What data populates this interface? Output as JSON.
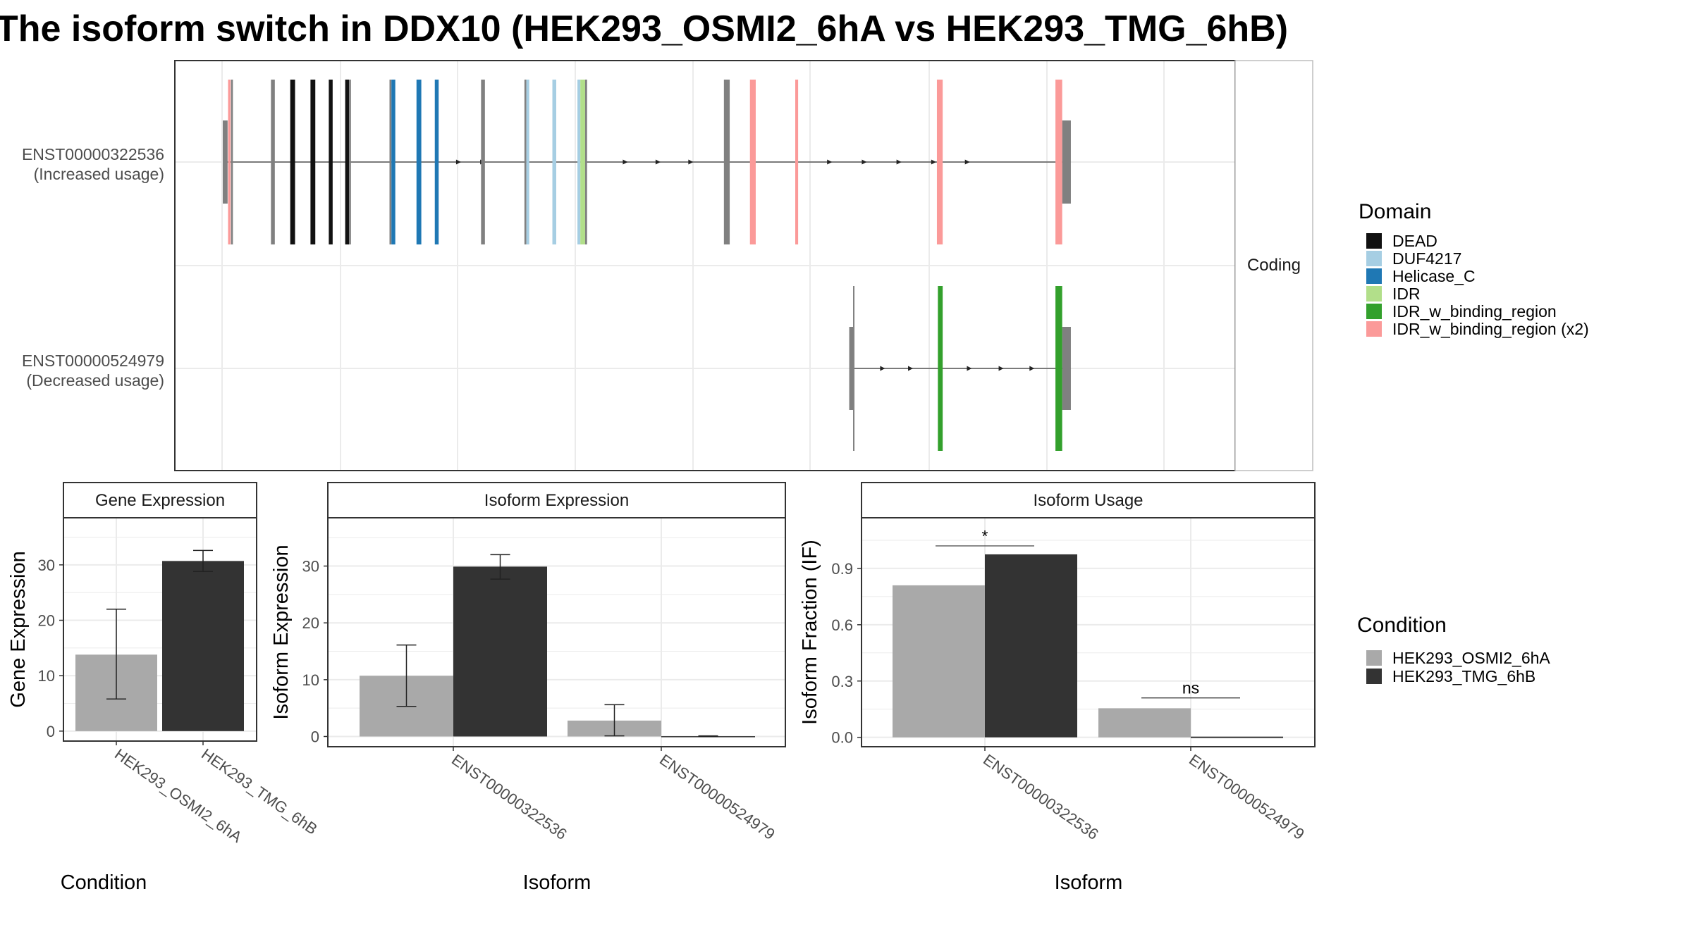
{
  "title": "The isoform switch in DDX10 (HEK293_OSMI2_6hA vs HEK293_TMG_6hB)",
  "colors": {
    "cond1": "#a9a9a9",
    "cond2": "#333333",
    "grid": "#ebebeb",
    "panel_border": "#333333",
    "strip_fill": "#ffffff",
    "exon_grey": "#808080",
    "intron": "#555555"
  },
  "structure": {
    "strip_label": "Coding",
    "x_range": [
      0,
      1000
    ],
    "transcripts": [
      {
        "id": "ENST00000322536",
        "usage": "(Increased usage)",
        "intron_span": [
          0,
          880
        ],
        "utr5": [
          0,
          5
        ],
        "utr3": [
          871,
          880
        ],
        "exons": [
          {
            "x": 5.5,
            "w": 2.5,
            "domain": "IDR_w_binding_region (x2)"
          },
          {
            "x": 8.5,
            "w": 2,
            "domain": "none"
          },
          {
            "x": 50,
            "w": 4,
            "domain": "none"
          },
          {
            "x": 70,
            "w": 5,
            "domain": "DEAD"
          },
          {
            "x": 91,
            "w": 5,
            "domain": "DEAD"
          },
          {
            "x": 110,
            "w": 4,
            "domain": "DEAD"
          },
          {
            "x": 127,
            "w": 4,
            "domain": "DEAD"
          },
          {
            "x": 131,
            "w": 2,
            "domain": "none"
          },
          {
            "x": 173,
            "w": 2,
            "domain": "none"
          },
          {
            "x": 175,
            "w": 4,
            "domain": "Helicase_C"
          },
          {
            "x": 201,
            "w": 5,
            "domain": "Helicase_C"
          },
          {
            "x": 220,
            "w": 4,
            "domain": "Helicase_C"
          },
          {
            "x": 268,
            "w": 4,
            "domain": "none"
          },
          {
            "x": 313,
            "w": 2,
            "domain": "none"
          },
          {
            "x": 315,
            "w": 3,
            "domain": "DUF4217"
          },
          {
            "x": 342,
            "w": 4,
            "domain": "DUF4217"
          },
          {
            "x": 368,
            "w": 3,
            "domain": "DUF4217"
          },
          {
            "x": 371,
            "w": 5,
            "domain": "IDR"
          },
          {
            "x": 376,
            "w": 2,
            "domain": "none"
          },
          {
            "x": 520,
            "w": 6,
            "domain": "none"
          },
          {
            "x": 547,
            "w": 6,
            "domain": "IDR_w_binding_region (x2)"
          },
          {
            "x": 594,
            "w": 3,
            "domain": "IDR_w_binding_region (x2)"
          },
          {
            "x": 741,
            "w": 6,
            "domain": "IDR_w_binding_region (x2)"
          },
          {
            "x": 864,
            "w": 7,
            "domain": "IDR_w_binding_region (x2)"
          }
        ],
        "arrows": [
          245,
          270,
          418,
          452,
          486,
          630,
          666,
          702,
          738,
          773
        ]
      },
      {
        "id": "ENST00000524979",
        "usage": "(Decreased usage)",
        "intron_span": [
          650,
          880
        ],
        "utr5": [
          650,
          654
        ],
        "utr3": [
          871,
          880
        ],
        "exons": [
          {
            "x": 654,
            "w": 1,
            "domain": "none"
          },
          {
            "x": 742,
            "w": 5,
            "domain": "IDR_w_binding_region"
          },
          {
            "x": 864,
            "w": 7,
            "domain": "IDR_w_binding_region"
          }
        ],
        "arrows": [
          685,
          714,
          775,
          808,
          840
        ]
      }
    ]
  },
  "domain_legend": {
    "title": "Domain",
    "items": [
      {
        "label": "DEAD",
        "color": "#111111"
      },
      {
        "label": "DUF4217",
        "color": "#a6cee3"
      },
      {
        "label": "Helicase_C",
        "color": "#1f78b4"
      },
      {
        "label": "IDR",
        "color": "#b2df8a"
      },
      {
        "label": "IDR_w_binding_region",
        "color": "#33a02c"
      },
      {
        "label": "IDR_w_binding_region (x2)",
        "color": "#fb9a99"
      }
    ]
  },
  "condition_legend": {
    "title": "Condition",
    "items": [
      {
        "label": "HEK293_OSMI2_6hA",
        "color": "#a9a9a9"
      },
      {
        "label": "HEK293_TMG_6hB",
        "color": "#333333"
      }
    ]
  },
  "chart_data": [
    {
      "type": "bar",
      "title": "Gene Expression",
      "xlabel": "Condition",
      "ylabel": "Gene Expression",
      "categories": [
        "HEK293_OSMI2_6hA",
        "HEK293_TMG_6hB"
      ],
      "series": [
        {
          "name": "HEK293_OSMI2_6hA",
          "values": [
            13.8,
            null
          ],
          "err_low": [
            5.8,
            null
          ],
          "err_high": [
            22.0,
            null
          ]
        },
        {
          "name": "HEK293_TMG_6hB",
          "values": [
            null,
            30.7
          ],
          "err_low": [
            null,
            28.8
          ],
          "err_high": [
            null,
            32.6
          ]
        }
      ],
      "ylim": [
        -1.8,
        38.5
      ],
      "yticks": [
        0,
        10,
        20,
        30
      ],
      "grid": true
    },
    {
      "type": "bar",
      "title": "Isoform Expression",
      "xlabel": "Isoform",
      "ylabel": "Isoform Expression",
      "categories": [
        "ENST00000322536",
        "ENST00000524979"
      ],
      "series": [
        {
          "name": "HEK293_OSMI2_6hA",
          "values": [
            10.7,
            2.8
          ],
          "err_low": [
            5.3,
            0.1
          ],
          "err_high": [
            16.1,
            5.6
          ]
        },
        {
          "name": "HEK293_TMG_6hB",
          "values": [
            29.9,
            0.05
          ],
          "err_low": [
            27.7,
            0.0
          ],
          "err_high": [
            32.0,
            0.1
          ]
        }
      ],
      "ylim": [
        -1.8,
        38.5
      ],
      "yticks": [
        0,
        10,
        20,
        30
      ],
      "grid": true
    },
    {
      "type": "bar",
      "title": "Isoform Usage",
      "xlabel": "Isoform",
      "ylabel": "Isoform Fraction (IF)",
      "categories": [
        "ENST00000322536",
        "ENST00000524979"
      ],
      "series": [
        {
          "name": "HEK293_OSMI2_6hA",
          "values": [
            0.81,
            0.155
          ]
        },
        {
          "name": "HEK293_TMG_6hB",
          "values": [
            0.975,
            0.0
          ]
        }
      ],
      "ylim": [
        -0.05,
        1.17
      ],
      "yticks": [
        0.0,
        0.3,
        0.6,
        0.9
      ],
      "ytick_labels": [
        "0.0",
        "0.3",
        "0.6",
        "0.9"
      ],
      "grid": true,
      "annotations": [
        {
          "category": "ENST00000322536",
          "text": "*",
          "y": 1.02
        },
        {
          "category": "ENST00000524979",
          "text": "ns",
          "y": 0.21
        }
      ]
    }
  ]
}
